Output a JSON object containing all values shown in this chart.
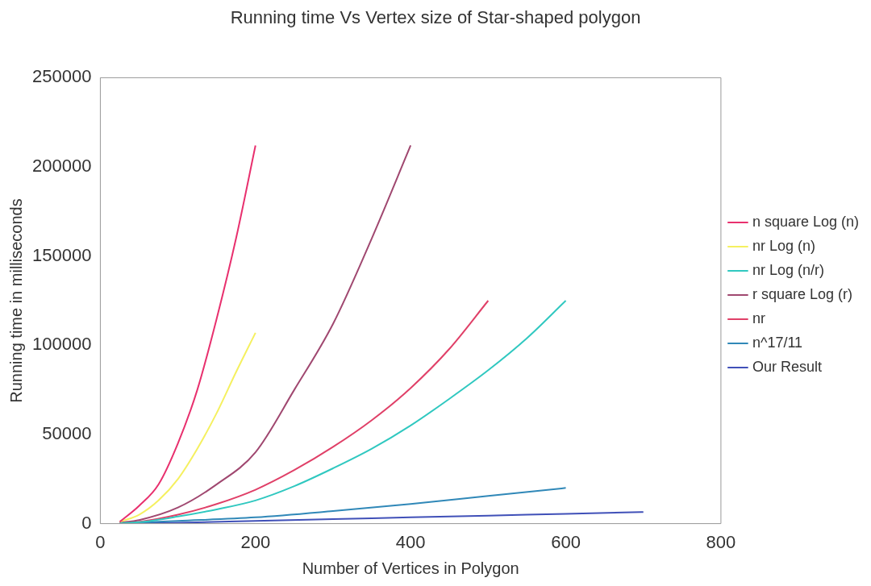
{
  "chart_data": {
    "type": "line",
    "title": "Running time Vs Vertex size of Star-shaped polygon",
    "xlabel": "Number of Vertices in Polygon",
    "ylabel": "Running time in milliseconds",
    "xlim": [
      0,
      800
    ],
    "xticks": [
      0,
      200,
      400,
      600,
      800
    ],
    "ylim": [
      0,
      250000
    ],
    "yticks": [
      0,
      50000,
      100000,
      150000,
      200000,
      250000
    ],
    "grid": false,
    "legend": "right",
    "marker": "none",
    "line_style": "solid",
    "series": [
      {
        "name": "n square Log (n)",
        "color": "#e8306e",
        "x": [
          25,
          50,
          75,
          100,
          125,
          150,
          175,
          200
        ],
        "values": [
          1000,
          10000,
          22000,
          45000,
          75000,
          115000,
          160000,
          212000
        ]
      },
      {
        "name": "nr Log (n)",
        "color": "#f5f060",
        "x": [
          25,
          50,
          75,
          100,
          125,
          150,
          175,
          200
        ],
        "values": [
          1000,
          5000,
          13000,
          25000,
          42000,
          62000,
          85000,
          107000
        ]
      },
      {
        "name": "nr Log (n/r)",
        "color": "#30c8c0",
        "x": [
          25,
          50,
          100,
          150,
          200,
          250,
          300,
          350,
          400,
          450,
          500,
          550,
          600
        ],
        "values": [
          200,
          800,
          4000,
          8000,
          13000,
          21000,
          31000,
          42000,
          55000,
          70000,
          86000,
          104000,
          125000
        ]
      },
      {
        "name": "r square Log (r)",
        "color": "#a04870",
        "x": [
          25,
          50,
          100,
          150,
          200,
          250,
          300,
          350,
          400
        ],
        "values": [
          500,
          2000,
          9000,
          22000,
          40000,
          75000,
          112000,
          160000,
          212000
        ]
      },
      {
        "name": "nr",
        "color": "#e04068",
        "x": [
          25,
          50,
          100,
          150,
          200,
          250,
          300,
          350,
          400,
          450,
          500
        ],
        "values": [
          300,
          1000,
          5000,
          11000,
          19000,
          30000,
          43000,
          58000,
          76000,
          98000,
          125000
        ]
      },
      {
        "name": "n^17/11",
        "color": "#3088b8",
        "x": [
          25,
          100,
          200,
          300,
          400,
          500,
          600
        ],
        "values": [
          100,
          1500,
          3500,
          7000,
          11000,
          15500,
          20000
        ]
      },
      {
        "name": "Our Result",
        "color": "#4050b8",
        "x": [
          25,
          100,
          200,
          300,
          400,
          500,
          600,
          700
        ],
        "values": [
          0,
          500,
          1500,
          2500,
          3500,
          4500,
          5500,
          6500
        ]
      }
    ]
  }
}
